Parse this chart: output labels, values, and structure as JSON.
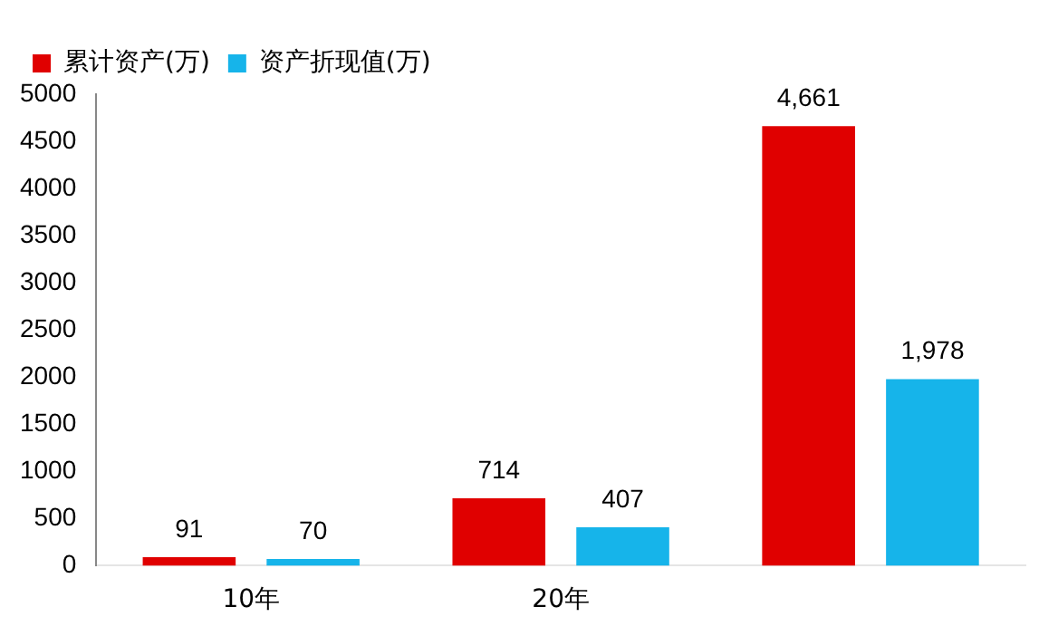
{
  "chart_data": {
    "type": "bar",
    "categories": [
      "10年",
      "20年",
      null
    ],
    "series": [
      {
        "name": "累计资产(万)",
        "color": "#e00000",
        "values": [
          91,
          714,
          4661
        ],
        "value_labels": [
          "91",
          "714",
          "4,661"
        ]
      },
      {
        "name": "资产折现值(万)",
        "color": "#16b4ea",
        "values": [
          70,
          407,
          1978
        ],
        "value_labels": [
          "70",
          "407",
          "1,978"
        ]
      }
    ],
    "ylim": [
      0,
      5000
    ],
    "yticks": [
      0,
      500,
      1000,
      1500,
      2000,
      2500,
      3000,
      3500,
      4000,
      4500,
      5000
    ],
    "grid": false,
    "legend": "top left"
  }
}
